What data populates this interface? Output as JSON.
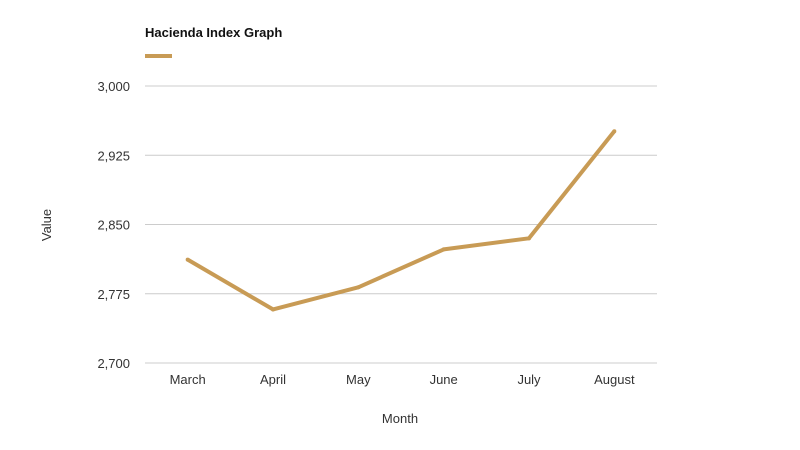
{
  "chart_data": {
    "type": "line",
    "title": "Hacienda Index Graph",
    "xlabel": "Month",
    "ylabel": "Value",
    "categories": [
      "March",
      "April",
      "May",
      "June",
      "July",
      "August"
    ],
    "series": [
      {
        "values": [
          2812,
          2758,
          2782,
          2823,
          2835,
          2951
        ]
      }
    ],
    "ylim": [
      2700,
      3000
    ],
    "yticks": [
      2700,
      2775,
      2850,
      2925,
      3000
    ],
    "ytick_labels": [
      "2,700",
      "2,775",
      "2,850",
      "2,925",
      "3,000"
    ],
    "grid": true,
    "legend": "top-left",
    "colors": {
      "series": "#c89b55",
      "grid": "#cccccc",
      "text": "#333333"
    }
  }
}
